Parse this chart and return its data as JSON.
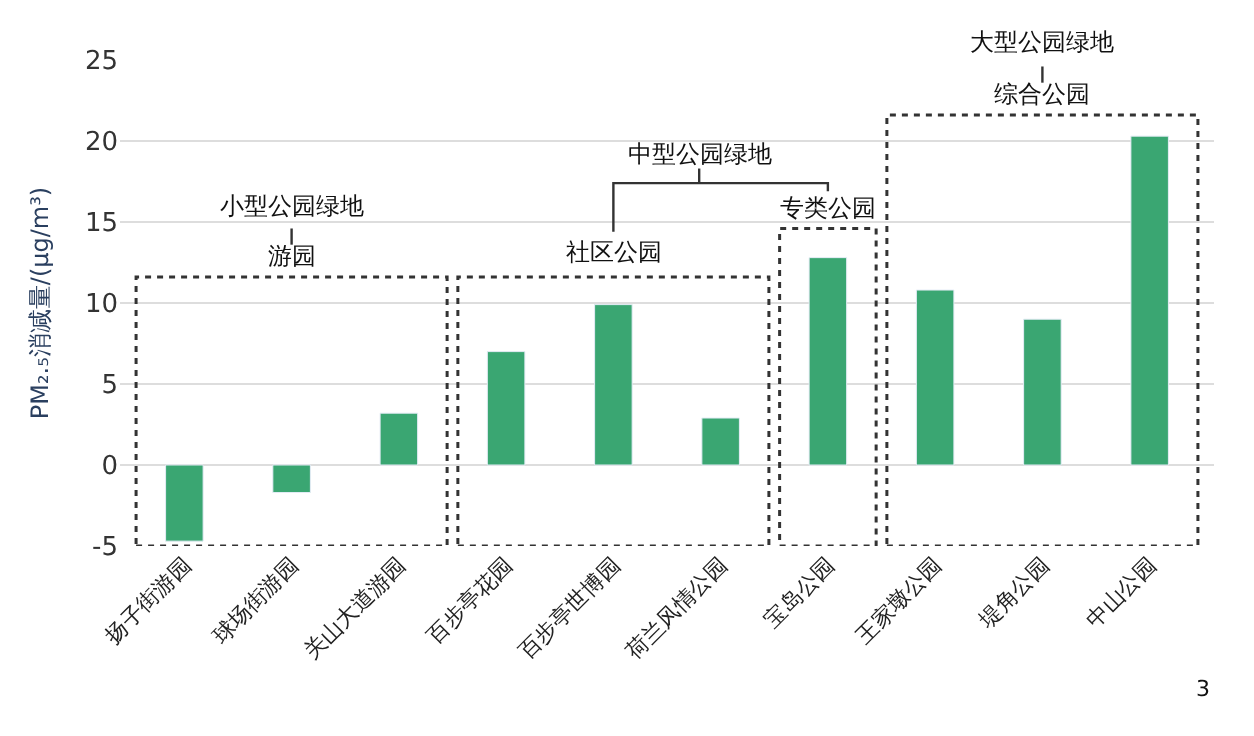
{
  "chart_data": {
    "type": "bar",
    "ylabel": "PM₂.₅消减量/(μg/m³)",
    "categories": [
      "扬子街游园",
      "球场街游园",
      "关山大道游园",
      "百步亭花园",
      "百步亭世博园",
      "荷兰风情公园",
      "宝岛公园",
      "王家墩公园",
      "堤角公园",
      "中山公园"
    ],
    "values": [
      -4.7,
      -1.7,
      3.2,
      7.0,
      9.9,
      2.9,
      12.8,
      10.8,
      9.0,
      20.3
    ],
    "color": "#3aa672",
    "ylim": [
      -5,
      25
    ],
    "yticks": [
      -5,
      0,
      5,
      10,
      15,
      20,
      25
    ],
    "grid": "y",
    "annotations": [
      "小型公园绿地",
      "游园",
      "中型公园绿地",
      "社区公园",
      "专类公园",
      "大型公园绿地",
      "综合公园",
      "3"
    ]
  }
}
